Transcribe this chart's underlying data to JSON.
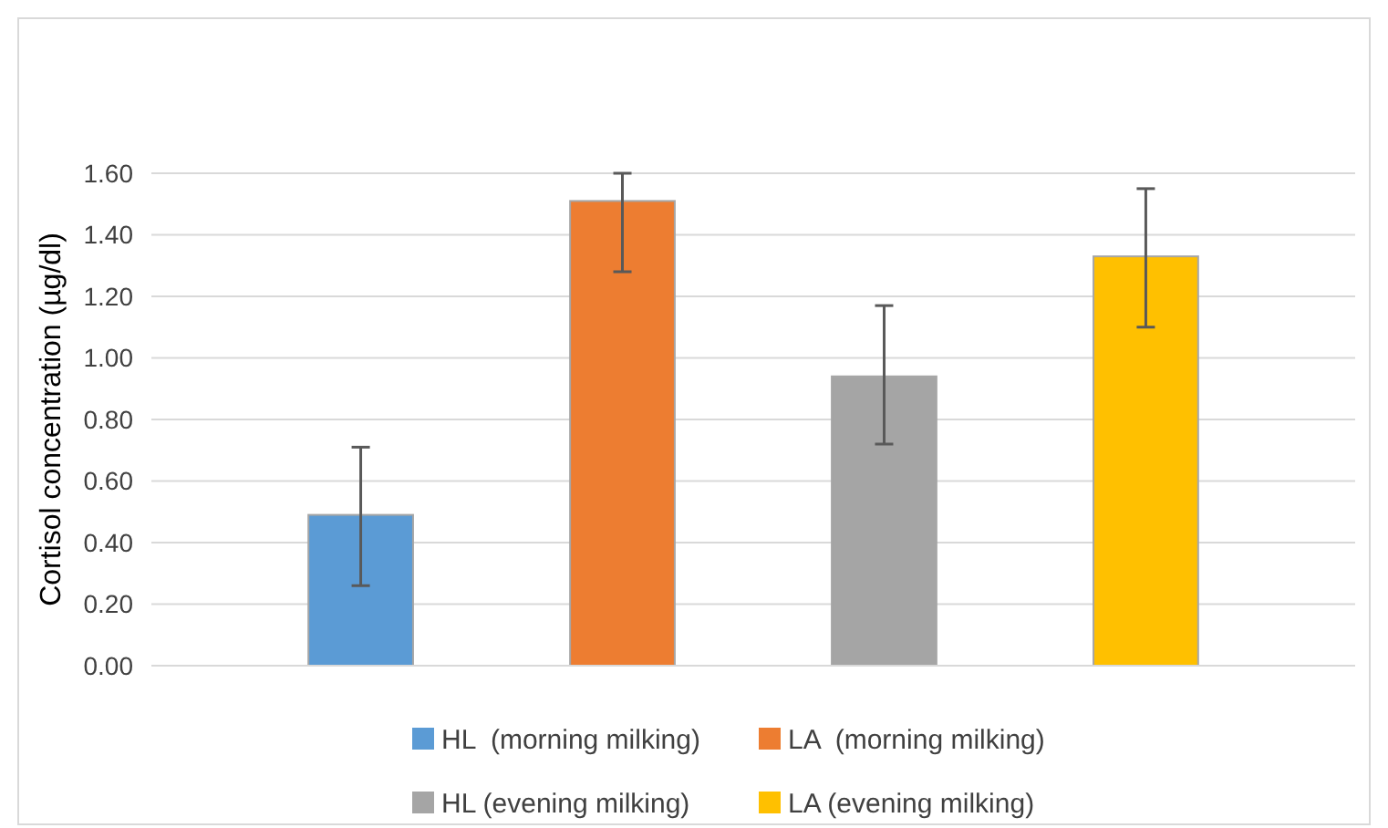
{
  "chart_data": {
    "type": "bar",
    "ylabel": "Cortisol concentration (µg/dl)",
    "categories": [
      null,
      null,
      null,
      null
    ],
    "series": [
      {
        "name": "HL  (morning milking)",
        "color": "#5b9bd5",
        "values": [
          0.49,
          null,
          null,
          null
        ],
        "errors": [
          [
            0.26,
            0.71
          ],
          null,
          null,
          null
        ]
      },
      {
        "name": "LA  (morning milking)",
        "color": "#ed7d31",
        "values": [
          null,
          1.51,
          null,
          null
        ],
        "errors": [
          null,
          [
            1.28,
            1.6
          ],
          null,
          null
        ]
      },
      {
        "name": "HL (evening milking)",
        "color": "#a5a5a5",
        "values": [
          null,
          null,
          0.94,
          null
        ],
        "errors": [
          null,
          null,
          [
            0.72,
            1.17
          ],
          null
        ]
      },
      {
        "name": "LA (evening milking)",
        "color": "#ffc000",
        "values": [
          null,
          null,
          null,
          1.33
        ],
        "errors": [
          null,
          null,
          null,
          [
            1.1,
            1.55
          ]
        ]
      }
    ],
    "ylim": [
      0,
      1.6
    ],
    "yticks": [
      {
        "value": 0,
        "label": "0.00"
      },
      {
        "value": 0.2,
        "label": "0.20"
      },
      {
        "value": 0.4,
        "label": "0.40"
      },
      {
        "value": 0.6,
        "label": "0.60"
      },
      {
        "value": 0.8,
        "label": "0.80"
      },
      {
        "value": 1,
        "label": "1.00"
      },
      {
        "value": 1.2,
        "label": "1.20"
      },
      {
        "value": 1.4,
        "label": "1.40"
      },
      {
        "value": 1.6,
        "label": "1.60"
      }
    ],
    "grid": "y",
    "legend": "bottom"
  }
}
